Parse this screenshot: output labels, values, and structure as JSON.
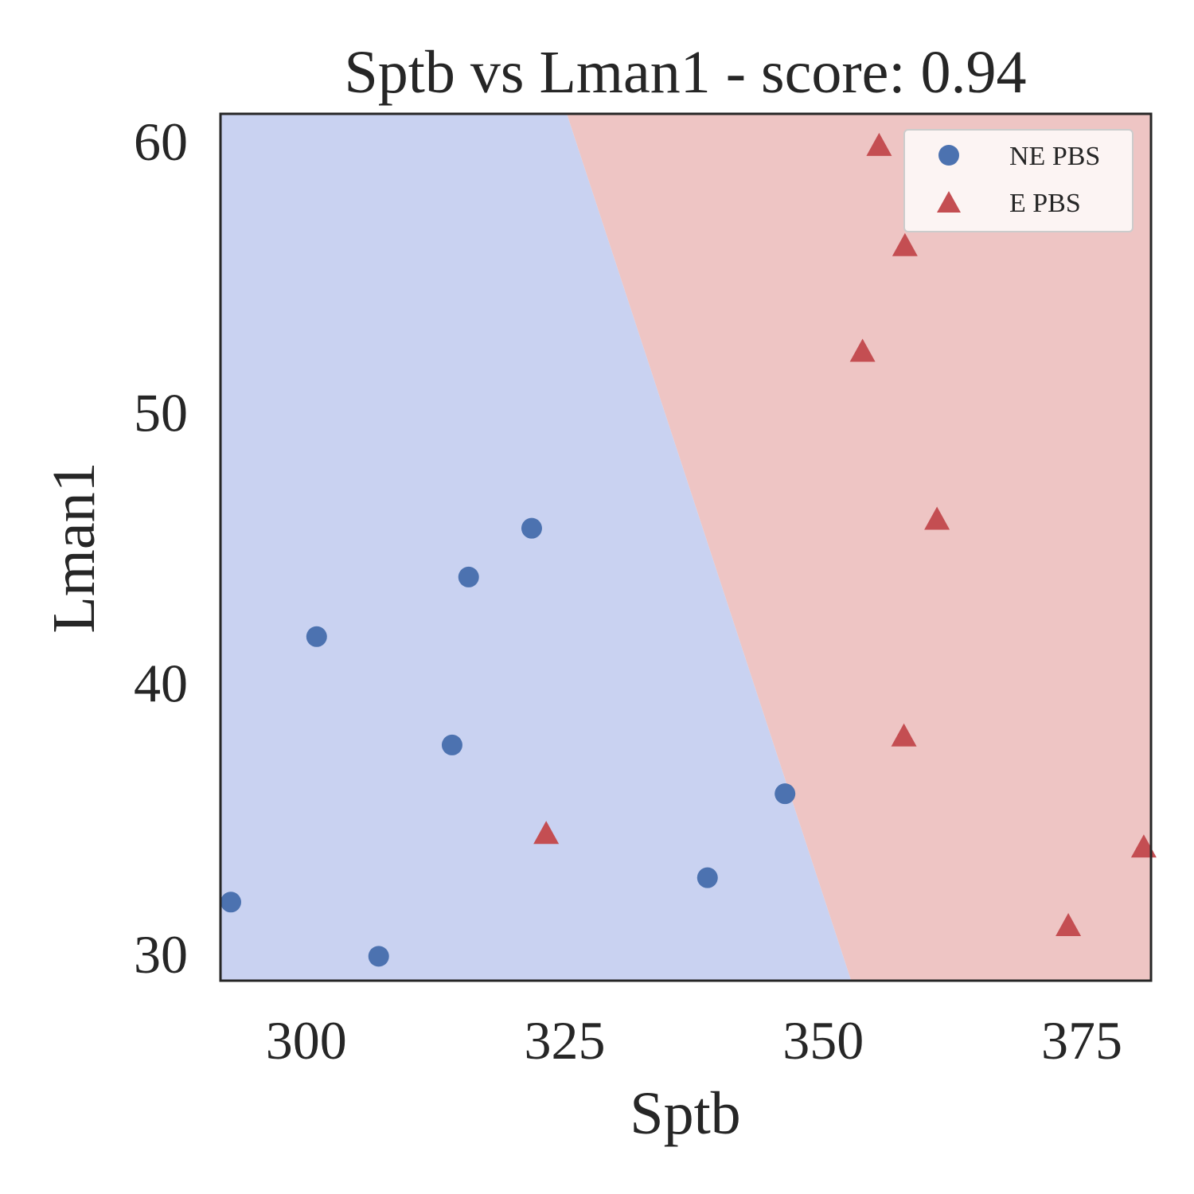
{
  "chart_data": {
    "type": "scatter",
    "title": "Sptb vs Lman1 - score: 0.94",
    "xlabel": "Sptb",
    "ylabel": "Lman1",
    "xlim": [
      291.7,
      381.7
    ],
    "ylim": [
      29.0,
      61.0
    ],
    "xticks": [
      300,
      325,
      350,
      375
    ],
    "yticks": [
      30,
      40,
      50,
      60
    ],
    "grid": false,
    "legend_position": "top-right",
    "decision_boundary": {
      "points": [
        [
          325.2,
          61.0
        ],
        [
          352.7,
          29.0
        ]
      ],
      "left_region": "NE PBS",
      "right_region": "E PBS"
    },
    "colors": {
      "ne_point": "#4c72b0",
      "e_point": "#c44e52",
      "ne_region": "#c9d2f1",
      "e_region": "#eec5c4",
      "axis": "#262626"
    },
    "series": [
      {
        "name": "NE PBS",
        "marker": "circle",
        "points": [
          [
            292.7,
            31.9
          ],
          [
            301.0,
            41.7
          ],
          [
            307.0,
            29.9
          ],
          [
            314.1,
            37.7
          ],
          [
            315.7,
            43.9
          ],
          [
            321.8,
            45.7
          ],
          [
            338.8,
            32.8
          ],
          [
            346.3,
            35.9
          ]
        ]
      },
      {
        "name": "E PBS",
        "marker": "triangle",
        "points": [
          [
            323.2,
            34.4
          ],
          [
            353.8,
            52.2
          ],
          [
            355.4,
            59.8
          ],
          [
            357.9,
            56.1
          ],
          [
            357.8,
            38.0
          ],
          [
            361.0,
            46.0
          ],
          [
            373.7,
            31.0
          ],
          [
            381.0,
            33.9
          ]
        ]
      }
    ]
  }
}
